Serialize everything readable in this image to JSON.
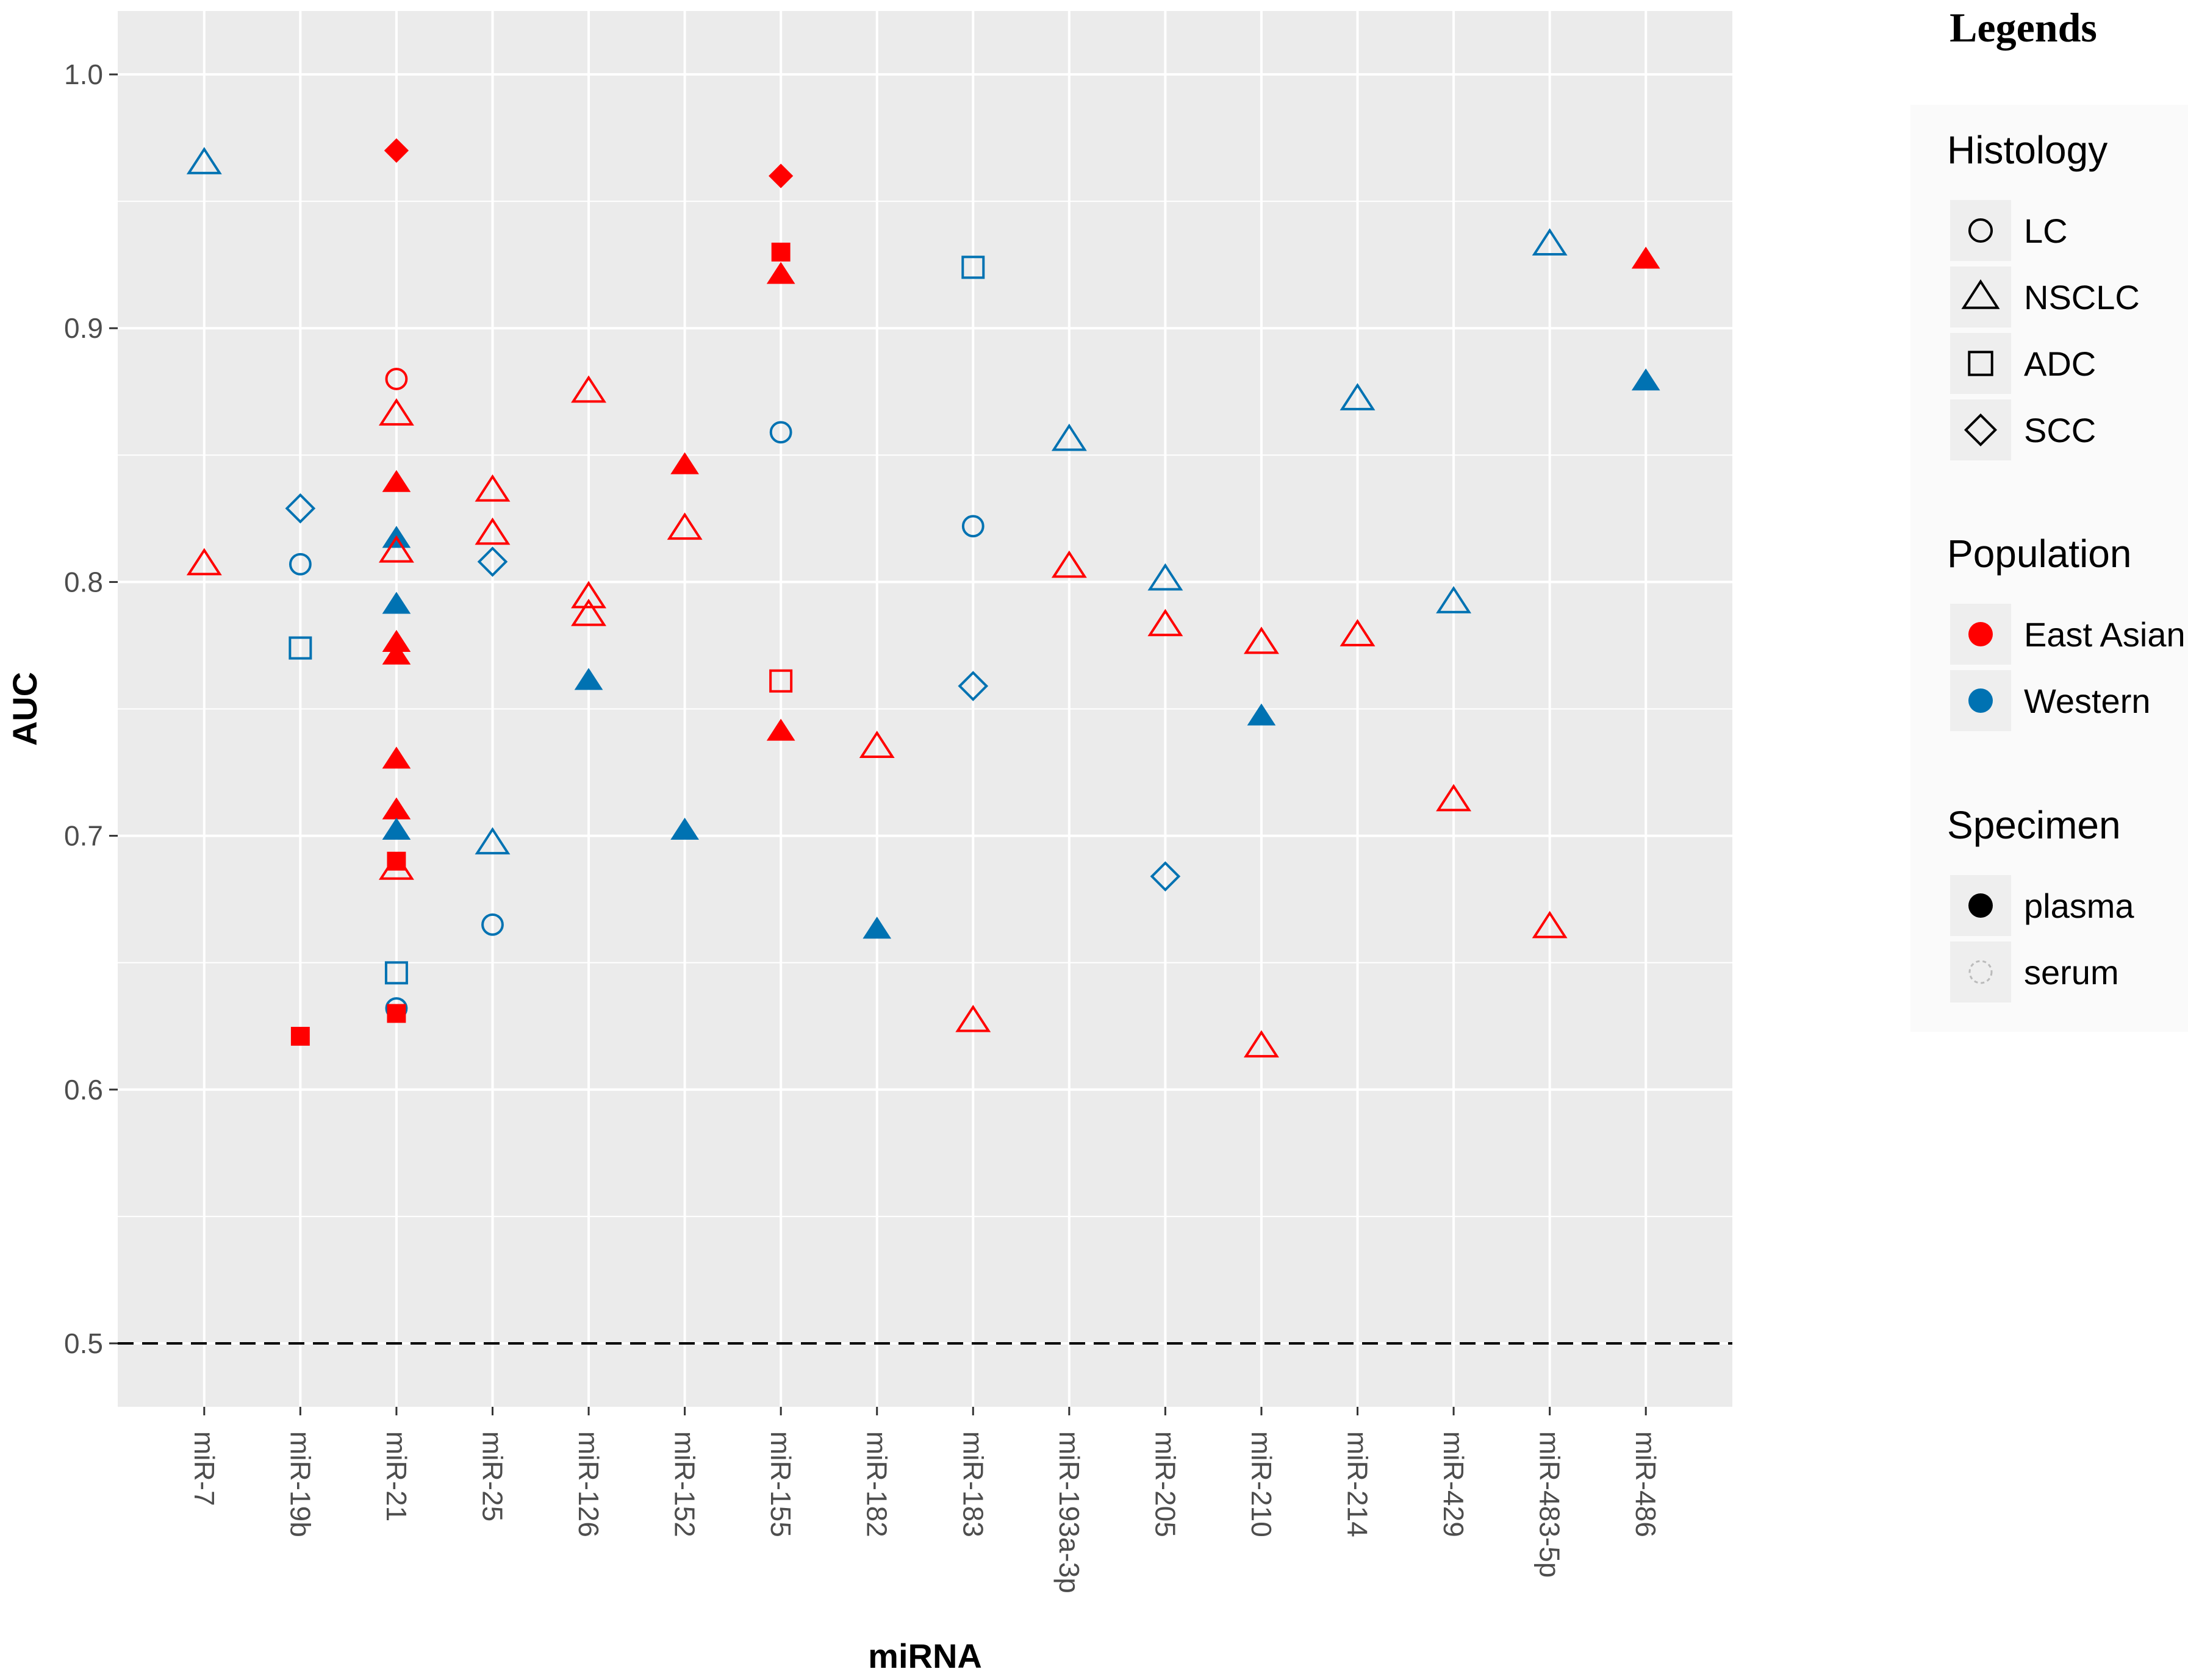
{
  "chart_data": {
    "type": "scatter",
    "title": "",
    "xlabel": "miRNA",
    "ylabel": "AUC",
    "categories": [
      "miR-7",
      "miR-19b",
      "miR-21",
      "miR-25",
      "miR-126",
      "miR-152",
      "miR-155",
      "miR-182",
      "miR-183",
      "miR-193a-3p",
      "miR-205",
      "miR-210",
      "miR-214",
      "miR-429",
      "miR-483-5p",
      "miR-486"
    ],
    "ylim": [
      0.475,
      1.025
    ],
    "y_ticks": [
      "0.5",
      "0.6",
      "0.7",
      "0.8",
      "0.9",
      "1.0"
    ],
    "reference_line": {
      "y": 0.5,
      "style": "dashed"
    },
    "colors": {
      "East Asian": "#ff0000",
      "Western": "#0072b2",
      "panel": "#ebebeb",
      "grid": "#ffffff"
    },
    "points": [
      {
        "x": "miR-7",
        "y": 0.965,
        "histology": "NSCLC",
        "population": "Western",
        "specimen": "serum"
      },
      {
        "x": "miR-7",
        "y": 0.807,
        "histology": "NSCLC",
        "population": "East Asian",
        "specimen": "serum"
      },
      {
        "x": "miR-19b",
        "y": 0.829,
        "histology": "SCC",
        "population": "Western",
        "specimen": "serum"
      },
      {
        "x": "miR-19b",
        "y": 0.807,
        "histology": "LC",
        "population": "Western",
        "specimen": "serum"
      },
      {
        "x": "miR-19b",
        "y": 0.774,
        "histology": "ADC",
        "population": "Western",
        "specimen": "serum"
      },
      {
        "x": "miR-19b",
        "y": 0.621,
        "histology": "ADC",
        "population": "East Asian",
        "specimen": "plasma"
      },
      {
        "x": "miR-21",
        "y": 0.97,
        "histology": "SCC",
        "population": "East Asian",
        "specimen": "plasma"
      },
      {
        "x": "miR-21",
        "y": 0.88,
        "histology": "LC",
        "population": "East Asian",
        "specimen": "serum"
      },
      {
        "x": "miR-21",
        "y": 0.866,
        "histology": "NSCLC",
        "population": "East Asian",
        "specimen": "serum"
      },
      {
        "x": "miR-21",
        "y": 0.839,
        "histology": "NSCLC",
        "population": "East Asian",
        "specimen": "plasma"
      },
      {
        "x": "miR-21",
        "y": 0.817,
        "histology": "NSCLC",
        "population": "Western",
        "specimen": "plasma"
      },
      {
        "x": "miR-21",
        "y": 0.812,
        "histology": "NSCLC",
        "population": "East Asian",
        "specimen": "serum"
      },
      {
        "x": "miR-21",
        "y": 0.791,
        "histology": "NSCLC",
        "population": "Western",
        "specimen": "plasma"
      },
      {
        "x": "miR-21",
        "y": 0.776,
        "histology": "NSCLC",
        "population": "East Asian",
        "specimen": "plasma"
      },
      {
        "x": "miR-21",
        "y": 0.771,
        "histology": "NSCLC",
        "population": "East Asian",
        "specimen": "plasma"
      },
      {
        "x": "miR-21",
        "y": 0.73,
        "histology": "NSCLC",
        "population": "East Asian",
        "specimen": "plasma"
      },
      {
        "x": "miR-21",
        "y": 0.71,
        "histology": "NSCLC",
        "population": "East Asian",
        "specimen": "plasma"
      },
      {
        "x": "miR-21",
        "y": 0.702,
        "histology": "NSCLC",
        "population": "Western",
        "specimen": "plasma"
      },
      {
        "x": "miR-21",
        "y": 0.69,
        "histology": "ADC",
        "population": "East Asian",
        "specimen": "plasma"
      },
      {
        "x": "miR-21",
        "y": 0.687,
        "histology": "NSCLC",
        "population": "East Asian",
        "specimen": "serum"
      },
      {
        "x": "miR-21",
        "y": 0.646,
        "histology": "ADC",
        "population": "Western",
        "specimen": "serum"
      },
      {
        "x": "miR-21",
        "y": 0.632,
        "histology": "LC",
        "population": "Western",
        "specimen": "serum"
      },
      {
        "x": "miR-21",
        "y": 0.63,
        "histology": "ADC",
        "population": "East Asian",
        "specimen": "plasma"
      },
      {
        "x": "miR-25",
        "y": 0.836,
        "histology": "NSCLC",
        "population": "East Asian",
        "specimen": "serum"
      },
      {
        "x": "miR-25",
        "y": 0.819,
        "histology": "NSCLC",
        "population": "East Asian",
        "specimen": "serum"
      },
      {
        "x": "miR-25",
        "y": 0.808,
        "histology": "SCC",
        "population": "Western",
        "specimen": "serum"
      },
      {
        "x": "miR-25",
        "y": 0.697,
        "histology": "NSCLC",
        "population": "Western",
        "specimen": "serum"
      },
      {
        "x": "miR-25",
        "y": 0.665,
        "histology": "LC",
        "population": "Western",
        "specimen": "serum"
      },
      {
        "x": "miR-126",
        "y": 0.875,
        "histology": "NSCLC",
        "population": "East Asian",
        "specimen": "serum"
      },
      {
        "x": "miR-126",
        "y": 0.794,
        "histology": "NSCLC",
        "population": "East Asian",
        "specimen": "serum"
      },
      {
        "x": "miR-126",
        "y": 0.787,
        "histology": "NSCLC",
        "population": "East Asian",
        "specimen": "serum"
      },
      {
        "x": "miR-126",
        "y": 0.761,
        "histology": "NSCLC",
        "population": "Western",
        "specimen": "plasma"
      },
      {
        "x": "miR-152",
        "y": 0.846,
        "histology": "NSCLC",
        "population": "East Asian",
        "specimen": "plasma"
      },
      {
        "x": "miR-152",
        "y": 0.821,
        "histology": "NSCLC",
        "population": "East Asian",
        "specimen": "serum"
      },
      {
        "x": "miR-152",
        "y": 0.702,
        "histology": "NSCLC",
        "population": "Western",
        "specimen": "plasma"
      },
      {
        "x": "miR-155",
        "y": 0.96,
        "histology": "SCC",
        "population": "East Asian",
        "specimen": "plasma"
      },
      {
        "x": "miR-155",
        "y": 0.93,
        "histology": "ADC",
        "population": "East Asian",
        "specimen": "plasma"
      },
      {
        "x": "miR-155",
        "y": 0.921,
        "histology": "NSCLC",
        "population": "East Asian",
        "specimen": "plasma"
      },
      {
        "x": "miR-155",
        "y": 0.859,
        "histology": "LC",
        "population": "Western",
        "specimen": "serum"
      },
      {
        "x": "miR-155",
        "y": 0.761,
        "histology": "ADC",
        "population": "East Asian",
        "specimen": "serum"
      },
      {
        "x": "miR-155",
        "y": 0.741,
        "histology": "NSCLC",
        "population": "East Asian",
        "specimen": "plasma"
      },
      {
        "x": "miR-182",
        "y": 0.735,
        "histology": "NSCLC",
        "population": "East Asian",
        "specimen": "serum"
      },
      {
        "x": "miR-182",
        "y": 0.663,
        "histology": "NSCLC",
        "population": "Western",
        "specimen": "plasma"
      },
      {
        "x": "miR-183",
        "y": 0.924,
        "histology": "ADC",
        "population": "Western",
        "specimen": "serum"
      },
      {
        "x": "miR-183",
        "y": 0.822,
        "histology": "LC",
        "population": "Western",
        "specimen": "serum"
      },
      {
        "x": "miR-183",
        "y": 0.759,
        "histology": "SCC",
        "population": "Western",
        "specimen": "serum"
      },
      {
        "x": "miR-183",
        "y": 0.627,
        "histology": "NSCLC",
        "population": "East Asian",
        "specimen": "serum"
      },
      {
        "x": "miR-193a-3p",
        "y": 0.856,
        "histology": "NSCLC",
        "population": "Western",
        "specimen": "serum"
      },
      {
        "x": "miR-193a-3p",
        "y": 0.806,
        "histology": "NSCLC",
        "population": "East Asian",
        "specimen": "serum"
      },
      {
        "x": "miR-205",
        "y": 0.801,
        "histology": "NSCLC",
        "population": "Western",
        "specimen": "serum"
      },
      {
        "x": "miR-205",
        "y": 0.783,
        "histology": "NSCLC",
        "population": "East Asian",
        "specimen": "serum"
      },
      {
        "x": "miR-205",
        "y": 0.684,
        "histology": "SCC",
        "population": "Western",
        "specimen": "serum"
      },
      {
        "x": "miR-210",
        "y": 0.776,
        "histology": "NSCLC",
        "population": "East Asian",
        "specimen": "serum"
      },
      {
        "x": "miR-210",
        "y": 0.747,
        "histology": "NSCLC",
        "population": "Western",
        "specimen": "plasma"
      },
      {
        "x": "miR-210",
        "y": 0.617,
        "histology": "NSCLC",
        "population": "East Asian",
        "specimen": "serum"
      },
      {
        "x": "miR-214",
        "y": 0.872,
        "histology": "NSCLC",
        "population": "Western",
        "specimen": "serum"
      },
      {
        "x": "miR-214",
        "y": 0.779,
        "histology": "NSCLC",
        "population": "East Asian",
        "specimen": "serum"
      },
      {
        "x": "miR-429",
        "y": 0.792,
        "histology": "NSCLC",
        "population": "Western",
        "specimen": "serum"
      },
      {
        "x": "miR-429",
        "y": 0.714,
        "histology": "NSCLC",
        "population": "East Asian",
        "specimen": "serum"
      },
      {
        "x": "miR-483-5p",
        "y": 0.933,
        "histology": "NSCLC",
        "population": "Western",
        "specimen": "serum"
      },
      {
        "x": "miR-483-5p",
        "y": 0.664,
        "histology": "NSCLC",
        "population": "East Asian",
        "specimen": "serum"
      },
      {
        "x": "miR-486",
        "y": 0.927,
        "histology": "NSCLC",
        "population": "East Asian",
        "specimen": "plasma"
      },
      {
        "x": "miR-486",
        "y": 0.879,
        "histology": "NSCLC",
        "population": "Western",
        "specimen": "plasma"
      }
    ],
    "legends_heading": "Legends",
    "legend": [
      {
        "title": "Histology",
        "items": [
          {
            "label": "LC",
            "shape": "circle"
          },
          {
            "label": "NSCLC",
            "shape": "triangle"
          },
          {
            "label": "ADC",
            "shape": "square"
          },
          {
            "label": "SCC",
            "shape": "diamond"
          }
        ]
      },
      {
        "title": "Population",
        "items": [
          {
            "label": "East Asian",
            "color": "#ff0000"
          },
          {
            "label": "Western",
            "color": "#0072b2"
          }
        ]
      },
      {
        "title": "Specimen",
        "items": [
          {
            "label": "plasma",
            "fill": "solid"
          },
          {
            "label": "serum",
            "fill": "hollow"
          }
        ]
      }
    ]
  }
}
